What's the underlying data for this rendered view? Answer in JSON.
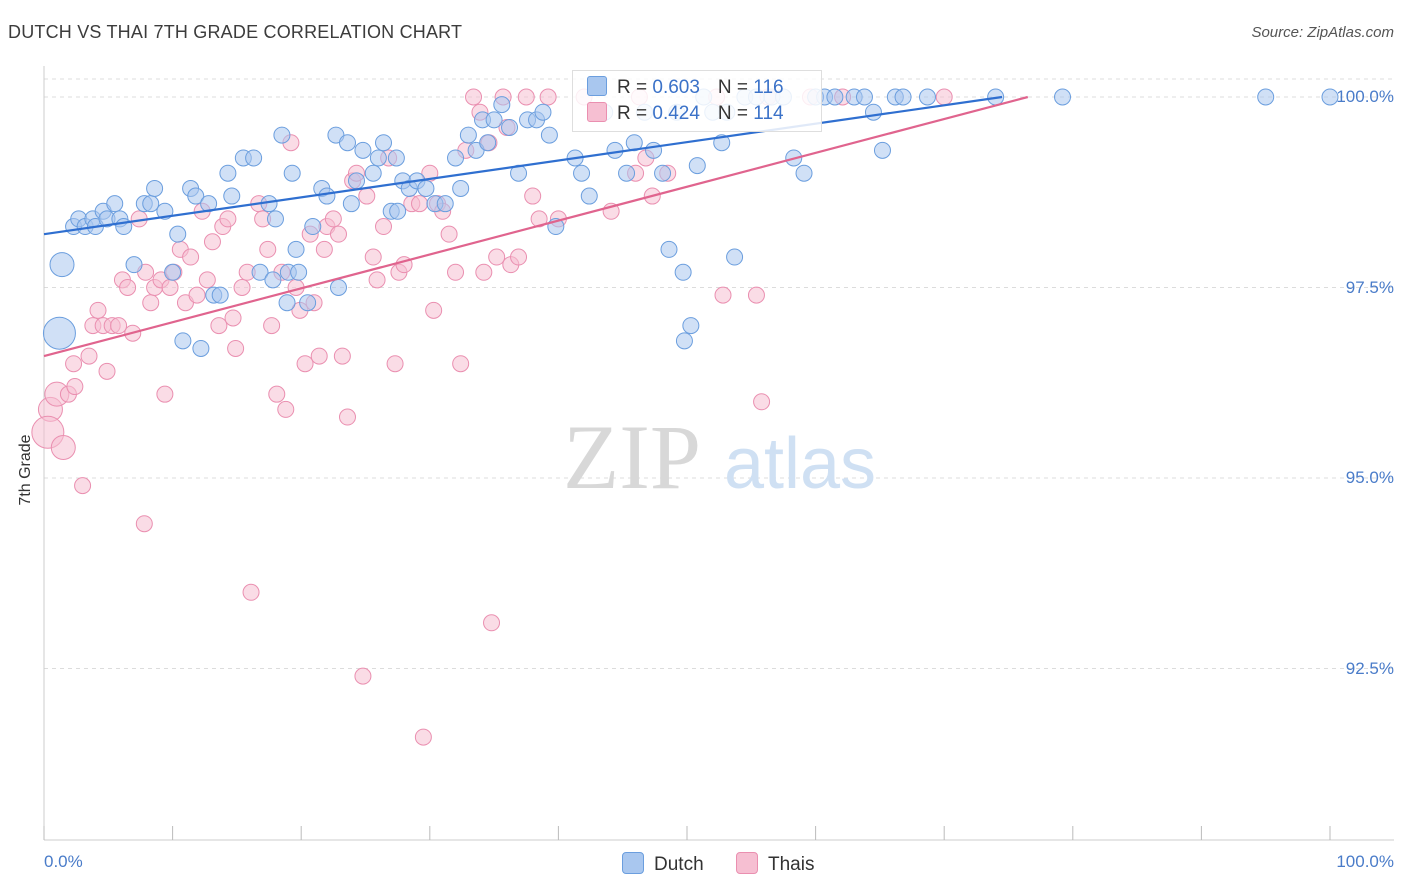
{
  "header": {
    "title": "DUTCH VS THAI 7TH GRADE CORRELATION CHART",
    "source": "Source: ZipAtlas.com"
  },
  "watermark": {
    "zip": "ZIP",
    "atlas": "atlas"
  },
  "colors": {
    "dutch_fill": "#a9c7ef",
    "dutch_stroke": "#6b9ede",
    "dutch_line": "#2f6fd0",
    "thai_fill": "#f6bfd2",
    "thai_stroke": "#ea8fb0",
    "thai_line": "#e0648e",
    "tick_text": "#4a7cc9",
    "grid": "#dcdcdc"
  },
  "legend_top": {
    "dutch": {
      "r_label": "R = ",
      "r_value": "0.603",
      "n_label": "N = ",
      "n_value": "116"
    },
    "thai": {
      "r_label": "R = ",
      "r_value": "0.424",
      "n_label": "N = ",
      "n_value": "114"
    }
  },
  "legend_bottom": {
    "dutch": "Dutch",
    "thai": "Thais"
  },
  "chart_data": {
    "type": "scatter",
    "title": "DUTCH VS THAI 7TH GRADE CORRELATION CHART",
    "xlabel": "",
    "ylabel": "7th Grade",
    "xlim": [
      0,
      100
    ],
    "ylim": [
      90.0,
      100.4
    ],
    "x_tick_labels": [
      "0.0%",
      "100.0%"
    ],
    "y_ticks": [
      92.5,
      95.0,
      97.5,
      100.0
    ],
    "y_tick_labels": [
      "92.5%",
      "95.0%",
      "97.5%",
      "100.0%"
    ],
    "grid": true,
    "series": [
      {
        "name": "Dutch",
        "r": 0.603,
        "n": 116,
        "trend": {
          "x": [
            0,
            74.5
          ],
          "y": [
            98.2,
            100.0
          ]
        },
        "points": [
          [
            1.4,
            97.8,
            2
          ],
          [
            1.2,
            96.9,
            3
          ],
          [
            2.3,
            98.3,
            1
          ],
          [
            2.7,
            98.4,
            1
          ],
          [
            3.2,
            98.3,
            1
          ],
          [
            3.8,
            98.4,
            1
          ],
          [
            4.0,
            98.3,
            1
          ],
          [
            4.6,
            98.5,
            1
          ],
          [
            4.9,
            98.4,
            1
          ],
          [
            5.5,
            98.6,
            1
          ],
          [
            5.9,
            98.4,
            1
          ],
          [
            6.2,
            98.3,
            1
          ],
          [
            7.0,
            97.8,
            1
          ],
          [
            7.8,
            98.6,
            1
          ],
          [
            8.3,
            98.6,
            1
          ],
          [
            8.6,
            98.8,
            1
          ],
          [
            9.4,
            98.5,
            1
          ],
          [
            10.0,
            97.7,
            1
          ],
          [
            10.4,
            98.2,
            1
          ],
          [
            10.8,
            96.8,
            1
          ],
          [
            11.4,
            98.8,
            1
          ],
          [
            11.8,
            98.7,
            1
          ],
          [
            12.2,
            96.7,
            1
          ],
          [
            12.8,
            98.6,
            1
          ],
          [
            13.2,
            97.4,
            1
          ],
          [
            13.7,
            97.4,
            1
          ],
          [
            14.3,
            99.0,
            1
          ],
          [
            14.6,
            98.7,
            1
          ],
          [
            15.5,
            99.2,
            1
          ],
          [
            16.3,
            99.2,
            1
          ],
          [
            16.8,
            97.7,
            1
          ],
          [
            17.5,
            98.6,
            1
          ],
          [
            17.8,
            97.6,
            1
          ],
          [
            18.0,
            98.4,
            1
          ],
          [
            18.5,
            99.5,
            1
          ],
          [
            18.9,
            97.3,
            1
          ],
          [
            19.0,
            97.7,
            1
          ],
          [
            19.3,
            99.0,
            1
          ],
          [
            19.6,
            98.0,
            1
          ],
          [
            19.8,
            97.7,
            1
          ],
          [
            20.5,
            97.3,
            1
          ],
          [
            20.9,
            98.3,
            1
          ],
          [
            21.6,
            98.8,
            1
          ],
          [
            22.0,
            98.7,
            1
          ],
          [
            22.7,
            99.5,
            1
          ],
          [
            22.9,
            97.5,
            1
          ],
          [
            23.6,
            99.4,
            1
          ],
          [
            23.9,
            98.6,
            1
          ],
          [
            24.3,
            98.9,
            1
          ],
          [
            24.8,
            99.3,
            1
          ],
          [
            25.6,
            99.0,
            1
          ],
          [
            26.0,
            99.2,
            1
          ],
          [
            26.4,
            99.4,
            1
          ],
          [
            27.0,
            98.5,
            1
          ],
          [
            27.4,
            99.2,
            1
          ],
          [
            27.9,
            98.9,
            1
          ],
          [
            28.4,
            98.8,
            1
          ],
          [
            29.0,
            98.9,
            1
          ],
          [
            29.7,
            98.8,
            1
          ],
          [
            30.4,
            98.6,
            1
          ],
          [
            31.2,
            98.6,
            1
          ],
          [
            32.0,
            99.2,
            1
          ],
          [
            32.4,
            98.8,
            1
          ],
          [
            33.0,
            99.5,
            1
          ],
          [
            33.6,
            99.3,
            1
          ],
          [
            34.1,
            99.7,
            1
          ],
          [
            34.5,
            99.4,
            1
          ],
          [
            35.0,
            99.7,
            1
          ],
          [
            35.6,
            99.9,
            1
          ],
          [
            36.2,
            99.6,
            1
          ],
          [
            36.9,
            99.0,
            1
          ],
          [
            37.6,
            99.7,
            1
          ],
          [
            38.3,
            99.7,
            1
          ],
          [
            38.8,
            99.8,
            1
          ],
          [
            39.3,
            99.5,
            1
          ],
          [
            39.8,
            98.3,
            1
          ],
          [
            41.3,
            99.2,
            1
          ],
          [
            41.8,
            99.0,
            1
          ],
          [
            42.4,
            98.7,
            1
          ],
          [
            43.6,
            99.8,
            1
          ],
          [
            44.4,
            99.3,
            1
          ],
          [
            45.3,
            99.0,
            1
          ],
          [
            45.9,
            99.4,
            1
          ],
          [
            46.7,
            99.8,
            1
          ],
          [
            47.4,
            99.3,
            1
          ],
          [
            48.1,
            99.0,
            1
          ],
          [
            48.6,
            98.0,
            1
          ],
          [
            49.2,
            99.8,
            1
          ],
          [
            49.7,
            97.7,
            1
          ],
          [
            50.3,
            97.0,
            1
          ],
          [
            50.8,
            99.1,
            1
          ],
          [
            51.3,
            100.0,
            1
          ],
          [
            52.0,
            99.8,
            1
          ],
          [
            52.7,
            99.4,
            1
          ],
          [
            53.1,
            99.8,
            1
          ],
          [
            53.7,
            97.9,
            1
          ],
          [
            54.5,
            100.0,
            1
          ],
          [
            55.4,
            100.0,
            1
          ],
          [
            56.6,
            100.0,
            1
          ],
          [
            57.5,
            100.0,
            1
          ],
          [
            58.3,
            99.2,
            1
          ],
          [
            59.1,
            99.0,
            1
          ],
          [
            60.0,
            100.0,
            1
          ],
          [
            60.7,
            100.0,
            1
          ],
          [
            61.5,
            100.0,
            1
          ],
          [
            63.0,
            100.0,
            1
          ],
          [
            63.8,
            100.0,
            1
          ],
          [
            64.5,
            99.8,
            1
          ],
          [
            65.2,
            99.3,
            1
          ],
          [
            66.2,
            100.0,
            1
          ],
          [
            66.8,
            100.0,
            1
          ],
          [
            68.7,
            100.0,
            1
          ],
          [
            74.0,
            100.0,
            1
          ],
          [
            79.2,
            100.0,
            1
          ],
          [
            95.0,
            100.0,
            1
          ],
          [
            100.0,
            100.0,
            1
          ],
          [
            49.8,
            96.8,
            1
          ],
          [
            27.5,
            98.5,
            1
          ]
        ]
      },
      {
        "name": "Thais",
        "r": 0.424,
        "n": 114,
        "trend": {
          "x": [
            0,
            76.5
          ],
          "y": [
            96.6,
            100.0
          ]
        },
        "points": [
          [
            0.5,
            95.9,
            2
          ],
          [
            0.3,
            95.6,
            3
          ],
          [
            1.0,
            96.1,
            2
          ],
          [
            1.5,
            95.4,
            2
          ],
          [
            1.9,
            96.1,
            1
          ],
          [
            2.3,
            96.5,
            1
          ],
          [
            2.4,
            96.2,
            1
          ],
          [
            3.0,
            94.9,
            1
          ],
          [
            3.5,
            96.6,
            1
          ],
          [
            3.8,
            97.0,
            1
          ],
          [
            4.2,
            97.2,
            1
          ],
          [
            4.6,
            97.0,
            1
          ],
          [
            4.9,
            96.4,
            1
          ],
          [
            5.3,
            97.0,
            1
          ],
          [
            5.8,
            97.0,
            1
          ],
          [
            6.1,
            97.6,
            1
          ],
          [
            6.5,
            97.5,
            1
          ],
          [
            6.9,
            96.9,
            1
          ],
          [
            7.4,
            98.4,
            1
          ],
          [
            7.8,
            94.4,
            1
          ],
          [
            7.9,
            97.7,
            1
          ],
          [
            8.3,
            97.3,
            1
          ],
          [
            8.6,
            97.5,
            1
          ],
          [
            9.1,
            97.6,
            1
          ],
          [
            9.4,
            96.1,
            1
          ],
          [
            9.8,
            97.5,
            1
          ],
          [
            10.1,
            97.7,
            1
          ],
          [
            10.6,
            98.0,
            1
          ],
          [
            11.0,
            97.3,
            1
          ],
          [
            11.4,
            97.9,
            1
          ],
          [
            11.9,
            97.4,
            1
          ],
          [
            12.3,
            98.5,
            1
          ],
          [
            12.7,
            97.6,
            1
          ],
          [
            13.1,
            98.1,
            1
          ],
          [
            13.6,
            97.0,
            1
          ],
          [
            13.9,
            98.3,
            1
          ],
          [
            14.3,
            98.4,
            1
          ],
          [
            14.7,
            97.1,
            1
          ],
          [
            14.9,
            96.7,
            1
          ],
          [
            15.4,
            97.5,
            1
          ],
          [
            15.8,
            97.7,
            1
          ],
          [
            16.1,
            93.5,
            1
          ],
          [
            16.7,
            98.6,
            1
          ],
          [
            17.0,
            98.4,
            1
          ],
          [
            17.4,
            98.0,
            1
          ],
          [
            17.7,
            97.0,
            1
          ],
          [
            18.1,
            96.1,
            1
          ],
          [
            18.5,
            97.7,
            1
          ],
          [
            18.8,
            95.9,
            1
          ],
          [
            19.2,
            99.4,
            1
          ],
          [
            19.6,
            97.5,
            1
          ],
          [
            19.9,
            97.2,
            1
          ],
          [
            20.3,
            96.5,
            1
          ],
          [
            20.7,
            98.2,
            1
          ],
          [
            21.0,
            97.3,
            1
          ],
          [
            21.4,
            96.6,
            1
          ],
          [
            21.8,
            98.0,
            1
          ],
          [
            22.0,
            98.3,
            1
          ],
          [
            22.5,
            98.4,
            1
          ],
          [
            22.9,
            98.2,
            1
          ],
          [
            23.2,
            96.6,
            1
          ],
          [
            23.6,
            95.8,
            1
          ],
          [
            24.0,
            98.9,
            1
          ],
          [
            24.3,
            99.0,
            1
          ],
          [
            24.8,
            92.4,
            1
          ],
          [
            25.1,
            98.7,
            1
          ],
          [
            25.6,
            97.9,
            1
          ],
          [
            25.9,
            97.6,
            1
          ],
          [
            26.4,
            98.3,
            1
          ],
          [
            26.8,
            99.2,
            1
          ],
          [
            27.3,
            96.5,
            1
          ],
          [
            27.6,
            97.7,
            1
          ],
          [
            28.0,
            97.8,
            1
          ],
          [
            28.6,
            98.6,
            1
          ],
          [
            29.2,
            98.6,
            1
          ],
          [
            29.5,
            91.6,
            1
          ],
          [
            30.0,
            99.0,
            1
          ],
          [
            30.3,
            97.2,
            1
          ],
          [
            30.6,
            98.6,
            1
          ],
          [
            31.0,
            98.5,
            1
          ],
          [
            31.5,
            98.2,
            1
          ],
          [
            32.0,
            97.7,
            1
          ],
          [
            32.4,
            96.5,
            1
          ],
          [
            32.8,
            99.3,
            1
          ],
          [
            33.4,
            100.0,
            1
          ],
          [
            33.9,
            99.8,
            1
          ],
          [
            34.2,
            97.7,
            1
          ],
          [
            34.6,
            99.4,
            1
          ],
          [
            34.8,
            93.1,
            1
          ],
          [
            35.2,
            97.9,
            1
          ],
          [
            35.7,
            100.0,
            1
          ],
          [
            36.0,
            99.6,
            1
          ],
          [
            36.3,
            97.8,
            1
          ],
          [
            36.9,
            97.9,
            1
          ],
          [
            37.5,
            100.0,
            1
          ],
          [
            38.0,
            98.7,
            1
          ],
          [
            38.5,
            98.4,
            1
          ],
          [
            39.2,
            100.0,
            1
          ],
          [
            40.0,
            98.4,
            1
          ],
          [
            42.0,
            100.0,
            1
          ],
          [
            44.1,
            98.5,
            1
          ],
          [
            46.3,
            100.0,
            1
          ],
          [
            46.8,
            99.2,
            1
          ],
          [
            47.3,
            98.7,
            1
          ],
          [
            48.5,
            99.0,
            1
          ],
          [
            52.3,
            100.0,
            1
          ],
          [
            52.8,
            97.4,
            1
          ],
          [
            55.4,
            97.4,
            1
          ],
          [
            55.8,
            96.0,
            1
          ],
          [
            56.3,
            100.0,
            1
          ],
          [
            59.6,
            100.0,
            1
          ],
          [
            62.1,
            100.0,
            1
          ],
          [
            70.0,
            100.0,
            1
          ],
          [
            46.0,
            99.0,
            1
          ]
        ]
      }
    ]
  }
}
